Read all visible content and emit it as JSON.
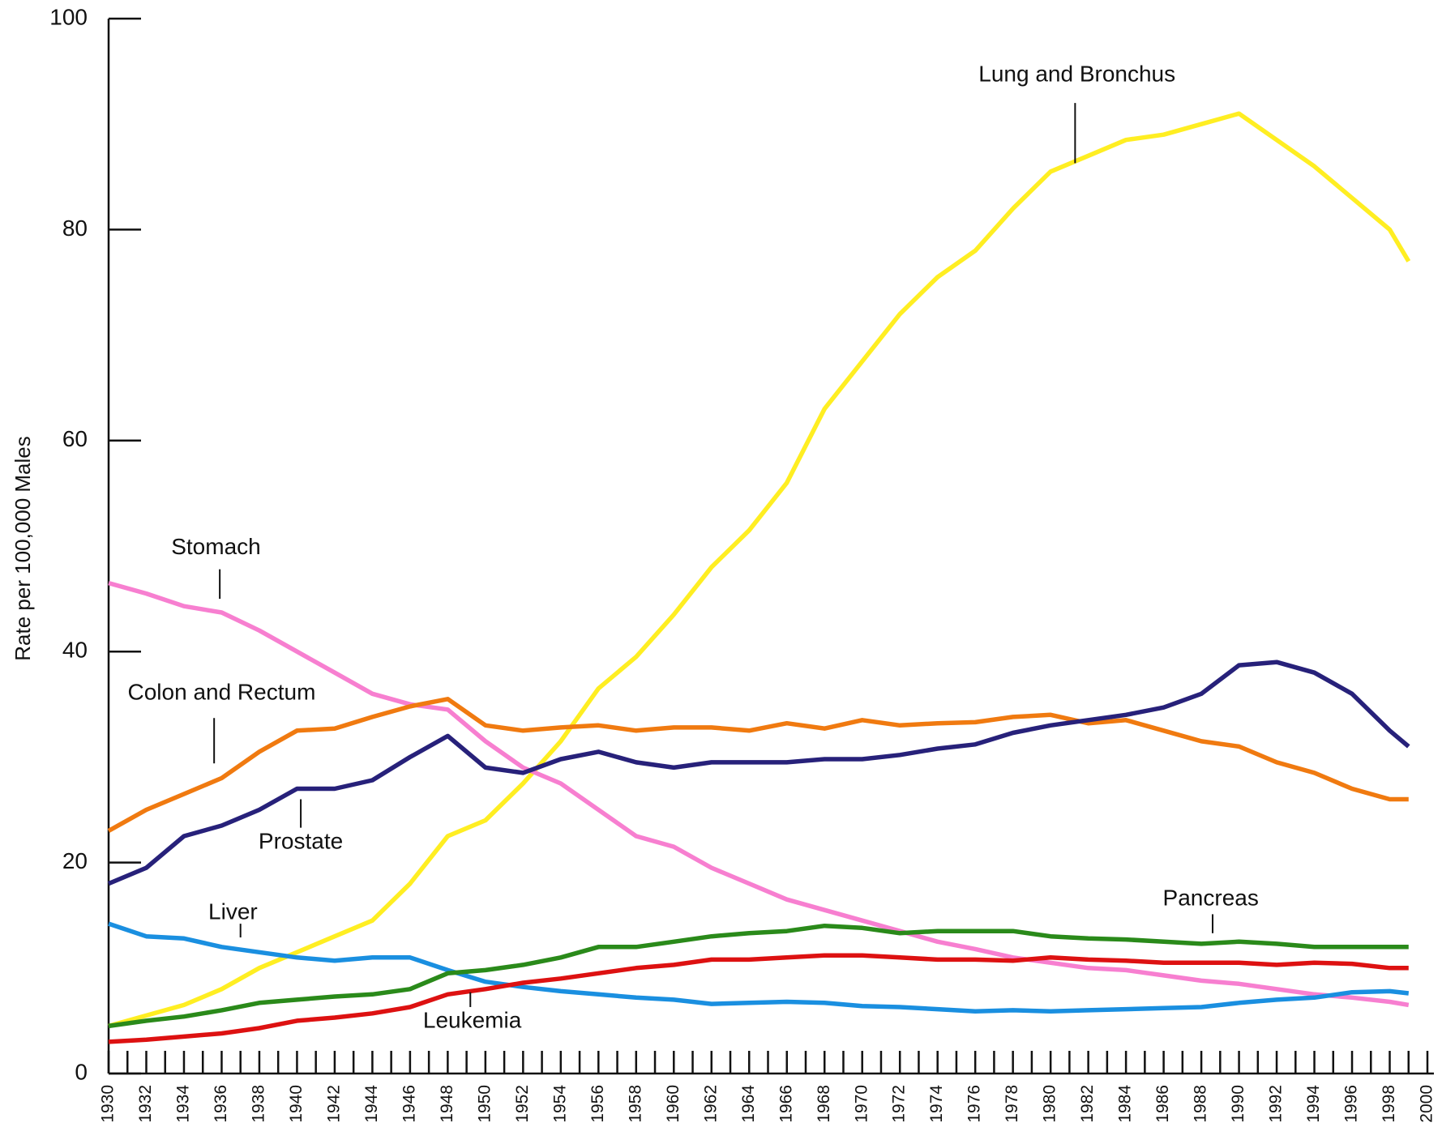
{
  "chart_data": {
    "type": "line",
    "y_label": "Rate per 100,000 Males",
    "x": [
      1930,
      1932,
      1934,
      1936,
      1938,
      1940,
      1942,
      1944,
      1946,
      1948,
      1950,
      1952,
      1954,
      1956,
      1958,
      1960,
      1962,
      1964,
      1966,
      1968,
      1970,
      1972,
      1974,
      1976,
      1978,
      1980,
      1982,
      1984,
      1986,
      1988,
      1990,
      1992,
      1994,
      1996,
      1998,
      1999
    ],
    "series": [
      {
        "name": "Lung and Bronchus",
        "color": "#ffee22",
        "values": [
          4.5,
          5.5,
          6.5,
          8,
          10,
          11.5,
          13,
          14.5,
          18,
          22.5,
          24,
          27.5,
          31.5,
          36.5,
          39.5,
          43.5,
          48,
          51.5,
          56,
          63,
          67.5,
          72,
          75.5,
          78,
          82,
          85.5,
          87,
          88.5,
          89,
          90,
          91,
          88.5,
          86,
          83,
          80,
          77
        ]
      },
      {
        "name": "Stomach",
        "color": "#f77fd0",
        "values": [
          46.5,
          45.5,
          44.3,
          43.7,
          42,
          40,
          38,
          36,
          35,
          34.5,
          31.5,
          29,
          27.5,
          25,
          22.5,
          21.5,
          19.5,
          18,
          16.5,
          15.5,
          14.5,
          13.5,
          12.5,
          11.8,
          11,
          10.5,
          10,
          9.8,
          9.3,
          8.8,
          8.5,
          8,
          7.5,
          7.2,
          6.8,
          6.5
        ]
      },
      {
        "name": "Colon and Rectum",
        "color": "#f07a10",
        "values": [
          23,
          25,
          26.5,
          28,
          30.5,
          32.5,
          32.7,
          33.8,
          34.8,
          35.5,
          33,
          32.5,
          32.8,
          33,
          32.5,
          32.8,
          32.8,
          32.5,
          33.2,
          32.7,
          33.5,
          33,
          33.2,
          33.3,
          33.8,
          34,
          33.2,
          33.5,
          32.5,
          31.5,
          31,
          29.5,
          28.5,
          27,
          26,
          26
        ]
      },
      {
        "name": "Prostate",
        "color": "#27217a",
        "values": [
          18,
          19.5,
          22.5,
          23.5,
          25,
          27,
          27,
          27.8,
          30,
          32,
          29,
          28.5,
          29.8,
          30.5,
          29.5,
          29,
          29.5,
          29.5,
          29.5,
          29.8,
          29.8,
          30.2,
          30.8,
          31.2,
          32.3,
          33,
          33.5,
          34,
          34.7,
          36,
          38.7,
          39,
          38,
          36,
          32.5,
          31
        ]
      },
      {
        "name": "Liver",
        "color": "#1a8fe0",
        "values": [
          14.2,
          13,
          12.8,
          12,
          11.5,
          11,
          10.7,
          11,
          11,
          9.8,
          8.7,
          8.2,
          7.8,
          7.5,
          7.2,
          7,
          6.6,
          6.7,
          6.8,
          6.7,
          6.4,
          6.3,
          6.1,
          5.9,
          6,
          5.9,
          6,
          6.1,
          6.2,
          6.3,
          6.7,
          7,
          7.2,
          7.7,
          7.8,
          7.6
        ]
      },
      {
        "name": "Pancreas",
        "color": "#2a8a1a",
        "values": [
          4.5,
          5,
          5.4,
          6,
          6.7,
          7,
          7.3,
          7.5,
          8,
          9.5,
          9.8,
          10.3,
          11,
          12,
          12,
          12.5,
          13,
          13.3,
          13.5,
          14,
          13.8,
          13.3,
          13.5,
          13.5,
          13.5,
          13,
          12.8,
          12.7,
          12.5,
          12.3,
          12.5,
          12.3,
          12,
          12,
          12,
          12
        ]
      },
      {
        "name": "Leukemia",
        "color": "#dd1111",
        "values": [
          3,
          3.2,
          3.5,
          3.8,
          4.3,
          5,
          5.3,
          5.7,
          6.3,
          7.5,
          8,
          8.6,
          9,
          9.5,
          10,
          10.3,
          10.8,
          10.8,
          11,
          11.2,
          11.2,
          11,
          10.8,
          10.8,
          10.7,
          11,
          10.8,
          10.7,
          10.5,
          10.5,
          10.5,
          10.3,
          10.5,
          10.4,
          10,
          10
        ]
      }
    ],
    "xlim": [
      1930,
      2000
    ],
    "xticks": [
      1930,
      1932,
      1934,
      1936,
      1938,
      1940,
      1942,
      1944,
      1946,
      1948,
      1950,
      1952,
      1954,
      1956,
      1958,
      1960,
      1962,
      1964,
      1966,
      1968,
      1970,
      1972,
      1974,
      1976,
      1978,
      1980,
      1982,
      1984,
      1986,
      1988,
      1990,
      1992,
      1994,
      1996,
      1998,
      2000
    ],
    "xminorticks": [
      1931,
      1933,
      1935,
      1937,
      1939,
      1941,
      1943,
      1945,
      1947,
      1949,
      1951,
      1953,
      1955,
      1957,
      1959,
      1961,
      1963,
      1965,
      1967,
      1969,
      1971,
      1973,
      1975,
      1977,
      1979,
      1981,
      1983,
      1985,
      1987,
      1989,
      1991,
      1993,
      1995,
      1997,
      1999
    ],
    "ylim": [
      0,
      100
    ],
    "yticks": [
      0,
      20,
      40,
      60,
      80,
      100
    ]
  }
}
